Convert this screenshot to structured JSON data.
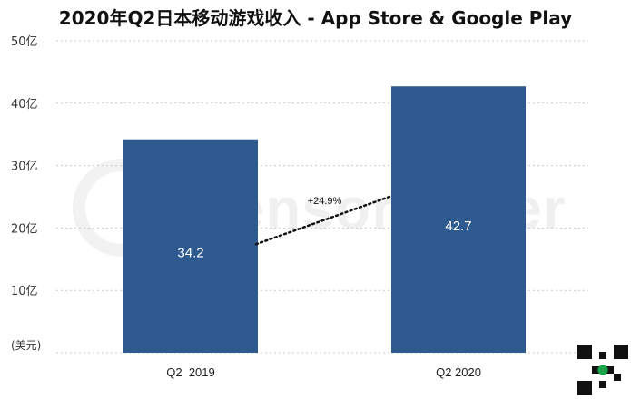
{
  "title": "2020年Q2日本移动游戏收入 - App Store & Google Play",
  "watermark": "SensorTower",
  "chart_data": {
    "type": "bar",
    "categories": [
      "Q2  2019",
      "Q2 2020"
    ],
    "values": [
      34.2,
      42.7
    ],
    "data_labels": [
      "34.2",
      "42.7"
    ],
    "y_ticks": [
      {
        "value": 10,
        "label": "10亿"
      },
      {
        "value": 20,
        "label": "20亿"
      },
      {
        "value": 30,
        "label": "30亿"
      },
      {
        "value": 40,
        "label": "40亿"
      },
      {
        "value": 50,
        "label": "50亿"
      }
    ],
    "y_unit": "(美元)",
    "ylim": [
      0,
      50
    ],
    "grid": true,
    "bar_color": "#2e5a8f",
    "annotation": {
      "text": "+24.9%",
      "style": "dotted line connecting bars"
    }
  }
}
